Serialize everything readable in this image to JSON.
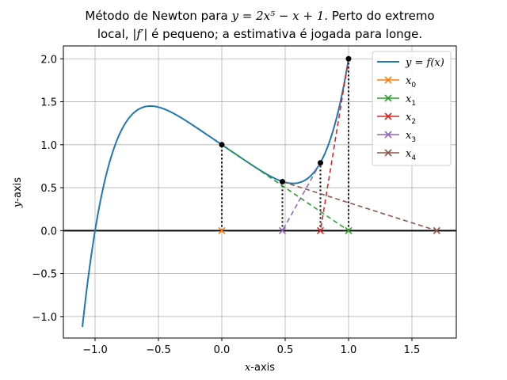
{
  "chart_data": {
    "type": "line",
    "title": {
      "line1_prefix": "Método de Newton para ",
      "line1_math": "y = 2x⁵ − x + 1",
      "line1_suffix": ". Perto do extremo",
      "line2_prefix": "local, ",
      "line2_math": "|f′|",
      "line2_suffix": " é pequeno; a estimativa é jogada para longe."
    },
    "xlabel": {
      "math": "x",
      "text": "-axis"
    },
    "ylabel": {
      "math": "y",
      "text": "-axis"
    },
    "xlim": [
      -1.25,
      1.85
    ],
    "ylim": [
      -1.25,
      2.15
    ],
    "xticks": [
      -1.0,
      -0.5,
      0.0,
      0.5,
      1.0,
      1.5
    ],
    "xtick_labels": [
      "−1.0",
      "−0.5",
      "0.0",
      "0.5",
      "1.0",
      "1.5"
    ],
    "yticks": [
      -1.0,
      -0.5,
      0.0,
      0.5,
      1.0,
      1.5,
      2.0
    ],
    "ytick_labels": [
      "−1.0",
      "−0.5",
      "0.0",
      "0.5",
      "1.0",
      "1.5",
      "2.0"
    ],
    "grid": true,
    "function": {
      "expression": "2*x^5 - x + 1",
      "x_range": [
        -1.1,
        1.0
      ]
    },
    "iterates": [
      {
        "name": "x0",
        "x": 0.0,
        "fx": 1.0,
        "next_x": 1.0
      },
      {
        "name": "x1",
        "x": 1.0,
        "fx": 2.0,
        "next_x": 0.778
      },
      {
        "name": "x2",
        "x": 0.778,
        "fx": 0.789,
        "next_x": 0.478
      },
      {
        "name": "x3",
        "x": 0.478,
        "fx": 0.57,
        "next_x": 1.696
      },
      {
        "name": "x4",
        "x": 1.696,
        "fx": null,
        "next_x": null
      }
    ],
    "legend": {
      "position": "upper right",
      "entries": [
        {
          "label": "y = f(x)",
          "color": "#1f77b4",
          "kind": "line"
        },
        {
          "label": "x0",
          "sub": "0",
          "color": "#ff7f0e",
          "kind": "marker"
        },
        {
          "label": "x1",
          "sub": "1",
          "color": "#2ca02c",
          "kind": "marker"
        },
        {
          "label": "x2",
          "sub": "2",
          "color": "#d62728",
          "kind": "marker"
        },
        {
          "label": "x3",
          "sub": "3",
          "color": "#9467bd",
          "kind": "marker"
        },
        {
          "label": "x4",
          "sub": "4",
          "color": "#8c564b",
          "kind": "marker"
        }
      ]
    },
    "colors": {
      "curve": "#1f77b4",
      "x0": "#ff7f0e",
      "x1": "#2ca02c",
      "x2": "#d62728",
      "x3": "#9467bd",
      "x4": "#8c564b",
      "point": "#000000",
      "grid": "#b0b0b0"
    }
  }
}
